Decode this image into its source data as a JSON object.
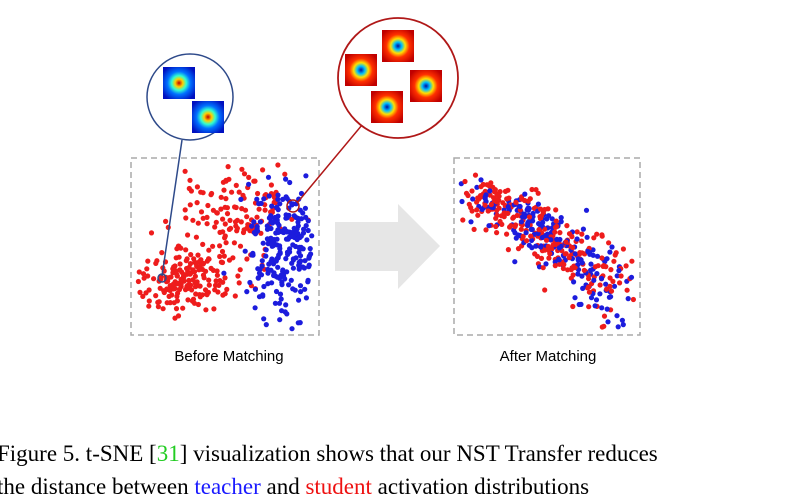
{
  "figure": {
    "panels": [
      {
        "label": "Before Matching"
      },
      {
        "label": "After Matching"
      }
    ]
  },
  "caption": {
    "line1": {
      "prefix": "Figure 5. t-SNE [",
      "ref": "31",
      "suffix": "] visualization shows that our NST Transfer reduces"
    },
    "line2": {
      "prefix": "the distance between ",
      "teacher": "teacher",
      "middle": " and ",
      "student": "student",
      "suffix": " activation distributions"
    }
  }
}
